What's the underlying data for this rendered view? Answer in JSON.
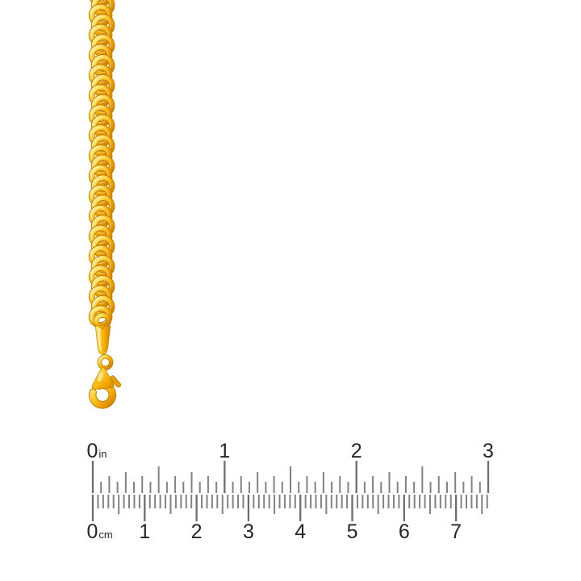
{
  "scene": {
    "background_color": "#ffffff",
    "objects": [
      "gold-chain",
      "chain-end-cap",
      "jump-ring",
      "lobster-clasp",
      "ruler"
    ]
  },
  "chain": {
    "name": "gold-rolo-chain",
    "link_count": 33,
    "colors": {
      "highlight": "#fff6c0",
      "light": "#ffd94f",
      "main": "#f7ae00",
      "deep": "#e29300",
      "shadow": "#c27c05",
      "outline": "#c07e04"
    }
  },
  "clasp": {
    "name": "lobster-clasp",
    "parts": [
      "end-cap",
      "jump-ring",
      "clasp-body",
      "trigger",
      "hook"
    ]
  },
  "ruler": {
    "top_scale": {
      "unit": "in",
      "labels": [
        "0",
        "1",
        "2",
        "3"
      ],
      "divisions_per_unit": 16
    },
    "bottom_scale": {
      "unit": "cm",
      "labels": [
        "0",
        "1",
        "2",
        "3",
        "4",
        "5",
        "6",
        "7"
      ],
      "divisions_per_unit": 10
    },
    "tick_color": "#828282",
    "major_tick_color": "#6e6e6e",
    "label_color": "#262626"
  }
}
